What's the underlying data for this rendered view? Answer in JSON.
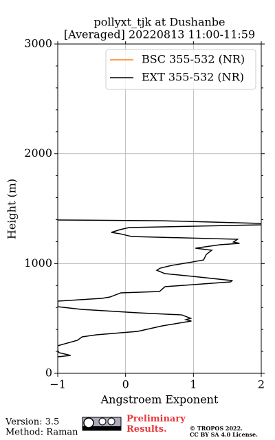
{
  "chart_data": {
    "type": "line",
    "title": [
      "pollyxt_tjk at Dushanbe",
      "[Averaged] 20220813 11:00-11:59"
    ],
    "xlabel": "Angstroem Exponent",
    "ylabel": "Height (m)",
    "xlim": [
      -1,
      2
    ],
    "ylim": [
      0,
      3000
    ],
    "xticks": [
      {
        "value": -1,
        "label": "−1"
      },
      0,
      1,
      2
    ],
    "yticks": [
      0,
      1000,
      2000,
      3000
    ],
    "grid": true,
    "legend": "upper right",
    "series": [
      {
        "name": "BSC 355-532 (NR)",
        "color": "#ff7f0e",
        "heights": [],
        "values": []
      },
      {
        "name": "EXT 355-532 (NR)",
        "color": "#000000",
        "heights": [
          1397,
          1390,
          1365,
          1353,
          1328,
          1309,
          1284,
          1271,
          1246,
          1221,
          1196,
          1184,
          1171,
          1140,
          1121,
          1083,
          1033,
          1015,
          983,
          958,
          939,
          908,
          883,
          845,
          833,
          789,
          745,
          733,
          695,
          683,
          658,
          607,
          582,
          551,
          532,
          501,
          489,
          476,
          432,
          382,
          351,
          332,
          301,
          251,
          207,
          188,
          163,
          150
        ],
        "values": [
          -1,
          0.55,
          2.0,
          2.0,
          0.05,
          -0.08,
          -0.21,
          -0.08,
          0.09,
          1.65,
          1.59,
          1.68,
          1.39,
          1.03,
          1.27,
          1.19,
          1.15,
          0.99,
          0.68,
          0.51,
          0.46,
          0.58,
          0.99,
          1.57,
          1.55,
          0.58,
          0.5,
          -0.07,
          -0.23,
          -0.35,
          -1,
          -1,
          -0.64,
          0.18,
          0.83,
          0.96,
          0.89,
          0.97,
          0.54,
          0.18,
          -0.43,
          -0.64,
          -0.71,
          -1,
          -1,
          -0.98,
          -0.81,
          -1
        ]
      }
    ]
  },
  "footer": {
    "version": "Version: 3.5",
    "method": "Method: Raman",
    "status": "Preliminary Results.",
    "copyright": [
      "© TROPOS 2022.",
      "CC BY SA 4.0 License."
    ]
  }
}
